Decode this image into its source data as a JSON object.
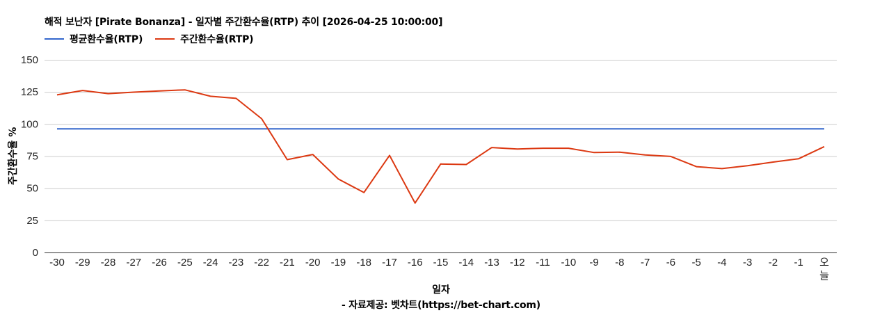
{
  "chart_data": {
    "type": "line",
    "title": "해적 보난자 [Pirate Bonanza] - 일자별 주간환수율(RTP) 추이 [2026-04-25 10:00:00]",
    "xlabel": "일자",
    "ylabel": "주간환수율 %",
    "ylim": [
      0,
      150
    ],
    "yticks": [
      0,
      25,
      50,
      75,
      100,
      125,
      150
    ],
    "grid": true,
    "legend_position": "top-left",
    "categories": [
      "-30",
      "-29",
      "-28",
      "-27",
      "-26",
      "-25",
      "-24",
      "-23",
      "-22",
      "-21",
      "-20",
      "-19",
      "-18",
      "-17",
      "-16",
      "-15",
      "-14",
      "-13",
      "-12",
      "-11",
      "-10",
      "-9",
      "-8",
      "-7",
      "-6",
      "-5",
      "-4",
      "-3",
      "-2",
      "-1",
      "오늘"
    ],
    "series": [
      {
        "name": "평균환수율(RTP)",
        "color": "#3366cc",
        "values": [
          96.3,
          96.3,
          96.3,
          96.3,
          96.3,
          96.3,
          96.3,
          96.3,
          96.3,
          96.3,
          96.3,
          96.3,
          96.3,
          96.3,
          96.3,
          96.3,
          96.3,
          96.3,
          96.3,
          96.3,
          96.3,
          96.3,
          96.3,
          96.3,
          96.3,
          96.3,
          96.3,
          96.3,
          96.3,
          96.3,
          96.3
        ]
      },
      {
        "name": "주간환수율(RTP)",
        "color": "#dc3912",
        "values": [
          122.7,
          126.1,
          123.7,
          124.8,
          125.8,
          126.6,
          121.6,
          120.0,
          104.2,
          72.3,
          76.3,
          57.2,
          46.7,
          75.6,
          38.5,
          68.9,
          68.5,
          81.7,
          80.6,
          81.2,
          81.2,
          77.8,
          78.1,
          75.9,
          74.8,
          66.8,
          65.3,
          67.5,
          70.4,
          73.0,
          82.4
        ]
      }
    ],
    "source_note": "- 자료제공: 벳차트(https://bet-chart.com)"
  },
  "header": {
    "title": "해적 보난자 [Pirate Bonanza] - 일자별 주간환수율(RTP) 추이 [2026-04-25 10:00:00]"
  },
  "legend": {
    "items": [
      {
        "label": "평균환수율(RTP)",
        "color": "#3366cc"
      },
      {
        "label": "주간환수율(RTP)",
        "color": "#dc3912"
      }
    ]
  },
  "axes": {
    "y_title": "주간환수율 %",
    "x_title": "일자",
    "today_label_line1": "오",
    "today_label_line2": "늘"
  },
  "footer": {
    "source": "- 자료제공: 벳차트(https://bet-chart.com)"
  }
}
